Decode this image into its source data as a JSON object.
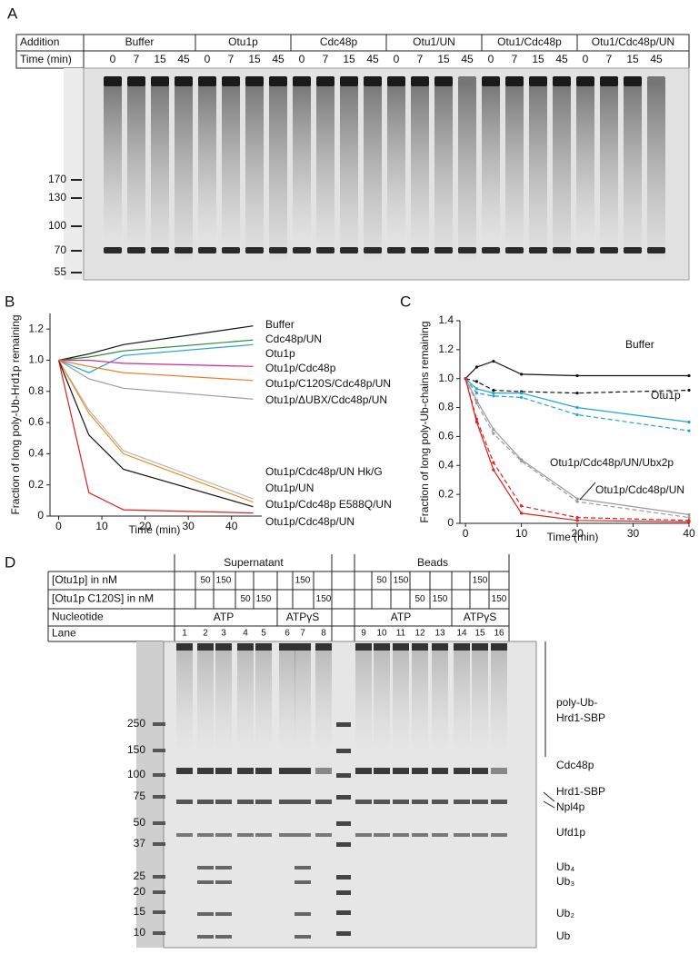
{
  "panel_a": {
    "label": "A",
    "addition_label": "Addition",
    "time_label": "Time (min)",
    "groups": [
      {
        "name": "Buffer",
        "times": [
          0,
          7,
          15,
          45
        ]
      },
      {
        "name": "Otu1p",
        "times": [
          0,
          7,
          15,
          45
        ]
      },
      {
        "name": "Cdc48p",
        "times": [
          0,
          7,
          15,
          45
        ]
      },
      {
        "name": "Otu1/UN",
        "times": [
          0,
          7,
          15,
          45
        ]
      },
      {
        "name": "Otu1/Cdc48p",
        "times": [
          0,
          7,
          15,
          45
        ]
      },
      {
        "name": "Otu1/Cdc48p/UN",
        "times": [
          0,
          7,
          15,
          45
        ]
      }
    ],
    "markers": [
      170,
      130,
      100,
      70,
      55
    ]
  },
  "chart_data": [
    {
      "type": "line",
      "panel": "B",
      "y_label": "Fraction of long poly-Ub-Hrd1p remaining",
      "x_label": "Time (min)",
      "x": [
        0,
        7,
        15,
        45
      ],
      "xlim": [
        -2,
        47
      ],
      "xticks": [
        0,
        10,
        20,
        30,
        40
      ],
      "ylim": [
        0,
        1.3
      ],
      "yticks": [
        0,
        0.2,
        0.4,
        0.6,
        0.8,
        {
          "value": 1,
          "label": "1.0"
        },
        1.2
      ],
      "series": [
        {
          "name": "Buffer",
          "color": "#111111",
          "values": [
            1,
            1.04,
            1.1,
            1.22
          ]
        },
        {
          "name": "Cdc48p/UN",
          "color": "#2e8b3a",
          "values": [
            1,
            1.02,
            1.06,
            1.13
          ]
        },
        {
          "name": "Otu1p",
          "color": "#1fa3d8",
          "values": [
            1,
            0.92,
            1.03,
            1.1
          ]
        },
        {
          "name": "Otu1p/Cdc48p",
          "color": "#d6268f",
          "values": [
            1,
            1.0,
            0.98,
            0.96
          ]
        },
        {
          "name": "Otu1p/C120S/Cdc48p/UN",
          "color": "#ee7a22",
          "values": [
            1,
            0.96,
            0.92,
            0.87
          ]
        },
        {
          "name": "Otu1p/ΔUBX/Cdc48p/UN",
          "color": "#9a9a9a",
          "values": [
            1,
            0.88,
            0.82,
            0.75
          ]
        },
        {
          "name": "Otu1p/Cdc48p/UN Hk/G",
          "color": "#b5b5b5",
          "values": [
            1,
            0.68,
            0.42,
            0.11
          ]
        },
        {
          "name": "Otu1p/UN",
          "color": "#f28c1e",
          "values": [
            1,
            0.66,
            0.4,
            0.09
          ]
        },
        {
          "name": "Otu1p/Cdc48p E588Q/UN",
          "color": "#111111",
          "values": [
            1,
            0.52,
            0.3,
            0.06
          ]
        },
        {
          "name": "Otu1p/Cdc48p/UN",
          "color": "#e0201c",
          "values": [
            1,
            0.15,
            0.04,
            0.02
          ]
        }
      ]
    },
    {
      "type": "line",
      "panel": "C",
      "y_label": "Fraction of long poly-Ub-chains remaining",
      "x_label": "Time (min)",
      "x": [
        0,
        2,
        5,
        10,
        20,
        40
      ],
      "xlim": [
        -1,
        40
      ],
      "xticks": [
        0,
        10,
        20,
        30,
        40
      ],
      "ylim": [
        0,
        1.4
      ],
      "yticks": [
        0,
        0.2,
        0.4,
        0.6,
        0.8,
        {
          "value": 1,
          "label": "1.0"
        },
        1.2,
        1.4
      ],
      "series": [
        {
          "name": "Buffer",
          "color": "#111111",
          "dashed": false,
          "values": [
            1,
            1.08,
            1.12,
            1.03,
            1.02,
            1.02
          ]
        },
        {
          "color": "#111111",
          "dashed": true,
          "values": [
            1,
            0.98,
            0.92,
            0.91,
            0.9,
            0.92
          ]
        },
        {
          "name": "Otu1p",
          "color": "#1fa3d8",
          "dashed": false,
          "values": [
            1,
            0.93,
            0.9,
            0.9,
            0.8,
            0.7
          ]
        },
        {
          "color": "#1fa3d8",
          "dashed": true,
          "values": [
            1,
            0.9,
            0.88,
            0.87,
            0.75,
            0.64
          ]
        },
        {
          "name": "Otu1p/Cdc48p/UN/Ubx2p",
          "color": "#9a9a9a",
          "dashed": false,
          "values": [
            1,
            0.85,
            0.65,
            0.44,
            0.17,
            0.06
          ]
        },
        {
          "color": "#9a9a9a",
          "dashed": true,
          "values": [
            1,
            0.83,
            0.62,
            0.43,
            0.15,
            0.04
          ]
        },
        {
          "name": "Otu1p/Cdc48p/UN",
          "color": "#e0201c",
          "dashed": false,
          "values": [
            1,
            0.7,
            0.37,
            0.07,
            0.02,
            0.01
          ]
        },
        {
          "color": "#e0201c",
          "dashed": true,
          "values": [
            1,
            0.72,
            0.42,
            0.12,
            0.04,
            0.02
          ]
        }
      ]
    }
  ],
  "panel_d": {
    "label": "D",
    "headers": [
      "Supernatant",
      "Beads"
    ],
    "row_labels": [
      "[Otu1p] in nM",
      "[Otu1p C120S] in nM",
      "Nucleotide",
      "Lane"
    ],
    "otu1p": [
      null,
      50,
      150,
      null,
      null,
      null,
      150,
      null,
      null,
      50,
      150,
      null,
      null,
      null,
      150,
      null
    ],
    "otu1p_c120s": [
      null,
      null,
      null,
      50,
      150,
      null,
      null,
      150,
      null,
      null,
      null,
      50,
      150,
      null,
      null,
      150
    ],
    "nucleotide": [
      "ATP",
      "ATPγS",
      "ATP",
      "ATPγS"
    ],
    "lanes": [
      1,
      2,
      3,
      4,
      5,
      6,
      7,
      8,
      9,
      10,
      11,
      12,
      13,
      14,
      15,
      16
    ],
    "markers": [
      250,
      150,
      100,
      75,
      50,
      37,
      25,
      20,
      15,
      10
    ],
    "bands": [
      [
        "poly-Ub-",
        "Hrd1-SBP"
      ],
      [
        "Cdc48p"
      ],
      [
        "Hrd1-SBP"
      ],
      [
        "Npl4p"
      ],
      [
        "Ufd1p"
      ],
      [
        "Ub₄"
      ],
      [
        "Ub₃"
      ],
      [
        "Ub₂"
      ],
      [
        "Ub"
      ]
    ]
  }
}
